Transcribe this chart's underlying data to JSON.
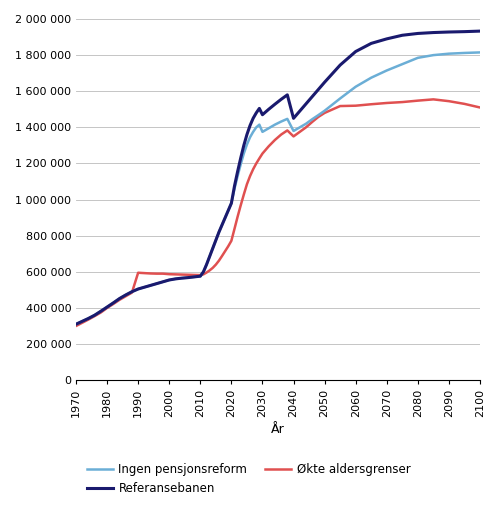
{
  "title": "",
  "xlabel": "År",
  "ylabel": "",
  "xlim": [
    1970,
    2100
  ],
  "ylim": [
    0,
    2000000
  ],
  "yticks": [
    0,
    200000,
    400000,
    600000,
    800000,
    1000000,
    1200000,
    1400000,
    1600000,
    1800000,
    2000000
  ],
  "xticks": [
    1970,
    1980,
    1990,
    2000,
    2010,
    2020,
    2030,
    2040,
    2050,
    2060,
    2070,
    2080,
    2090,
    2100
  ],
  "ytick_labels": [
    "0",
    "200 000",
    "400 000",
    "600 000",
    "800 000",
    "1 000 000",
    "1 200 000",
    "1 400 000",
    "1 600 000",
    "1 800 000",
    "2 000 000"
  ],
  "legend": [
    {
      "label": "Ingen pensjonsreform",
      "color": "#6baed6",
      "linewidth": 1.8
    },
    {
      "label": "Referansebanen",
      "color": "#1a1a6e",
      "linewidth": 2.2
    },
    {
      "label": "Økte aldersgrenser",
      "color": "#e05050",
      "linewidth": 1.8
    }
  ],
  "ingen_pensjonsreform": {
    "years": [
      1970,
      1972,
      1974,
      1976,
      1978,
      1980,
      1982,
      1984,
      1986,
      1988,
      1990,
      1992,
      1994,
      1996,
      1998,
      2000,
      2002,
      2004,
      2006,
      2008,
      2010,
      2011,
      2012,
      2013,
      2014,
      2015,
      2016,
      2017,
      2018,
      2019,
      2020,
      2021,
      2022,
      2023,
      2024,
      2025,
      2026,
      2027,
      2028,
      2029,
      2030,
      2032,
      2034,
      2036,
      2038,
      2040,
      2042,
      2044,
      2046,
      2048,
      2050,
      2055,
      2060,
      2065,
      2070,
      2075,
      2080,
      2085,
      2090,
      2095,
      2100
    ],
    "values": [
      310000,
      326000,
      342000,
      360000,
      382000,
      405000,
      428000,
      452000,
      472000,
      490000,
      505000,
      515000,
      525000,
      535000,
      545000,
      555000,
      561000,
      565000,
      568000,
      572000,
      576000,
      600000,
      640000,
      685000,
      730000,
      775000,
      820000,
      860000,
      900000,
      940000,
      980000,
      1060000,
      1130000,
      1195000,
      1255000,
      1305000,
      1345000,
      1375000,
      1400000,
      1415000,
      1375000,
      1395000,
      1415000,
      1432000,
      1447000,
      1380000,
      1400000,
      1420000,
      1445000,
      1468000,
      1492000,
      1560000,
      1625000,
      1675000,
      1715000,
      1750000,
      1785000,
      1800000,
      1808000,
      1812000,
      1815000
    ]
  },
  "referansebanen": {
    "years": [
      1970,
      1972,
      1974,
      1976,
      1978,
      1980,
      1982,
      1984,
      1986,
      1988,
      1990,
      1992,
      1994,
      1996,
      1998,
      2000,
      2002,
      2004,
      2006,
      2008,
      2010,
      2011,
      2012,
      2013,
      2014,
      2015,
      2016,
      2017,
      2018,
      2019,
      2020,
      2021,
      2022,
      2023,
      2024,
      2025,
      2026,
      2027,
      2028,
      2029,
      2030,
      2032,
      2034,
      2036,
      2038,
      2040,
      2042,
      2044,
      2046,
      2048,
      2050,
      2055,
      2060,
      2065,
      2070,
      2075,
      2080,
      2085,
      2090,
      2095,
      2100
    ],
    "values": [
      310000,
      326000,
      342000,
      360000,
      382000,
      405000,
      428000,
      452000,
      472000,
      490000,
      505000,
      515000,
      525000,
      535000,
      545000,
      555000,
      561000,
      565000,
      568000,
      572000,
      576000,
      600000,
      640000,
      685000,
      730000,
      775000,
      820000,
      860000,
      900000,
      940000,
      980000,
      1075000,
      1155000,
      1230000,
      1300000,
      1360000,
      1410000,
      1450000,
      1480000,
      1505000,
      1470000,
      1500000,
      1528000,
      1555000,
      1580000,
      1450000,
      1490000,
      1530000,
      1570000,
      1610000,
      1650000,
      1745000,
      1820000,
      1865000,
      1890000,
      1910000,
      1920000,
      1925000,
      1928000,
      1930000,
      1933000
    ]
  },
  "okte_aldersgrenser": {
    "years": [
      1970,
      1972,
      1974,
      1976,
      1978,
      1980,
      1982,
      1984,
      1986,
      1988,
      1990,
      1992,
      1994,
      1996,
      1998,
      2000,
      2002,
      2004,
      2006,
      2008,
      2010,
      2011,
      2012,
      2013,
      2014,
      2015,
      2016,
      2017,
      2018,
      2019,
      2020,
      2021,
      2022,
      2023,
      2024,
      2025,
      2026,
      2027,
      2028,
      2029,
      2030,
      2032,
      2034,
      2036,
      2038,
      2040,
      2042,
      2044,
      2046,
      2048,
      2050,
      2055,
      2060,
      2065,
      2070,
      2075,
      2080,
      2085,
      2090,
      2095,
      2100
    ],
    "values": [
      300000,
      318000,
      336000,
      355000,
      375000,
      400000,
      422000,
      445000,
      465000,
      485000,
      595000,
      593000,
      591000,
      590000,
      590000,
      587000,
      586000,
      585000,
      584000,
      583000,
      582000,
      586000,
      596000,
      608000,
      622000,
      640000,
      662000,
      688000,
      715000,
      742000,
      772000,
      838000,
      905000,
      968000,
      1028000,
      1085000,
      1130000,
      1168000,
      1200000,
      1228000,
      1255000,
      1295000,
      1330000,
      1360000,
      1383000,
      1350000,
      1375000,
      1400000,
      1430000,
      1458000,
      1480000,
      1518000,
      1520000,
      1528000,
      1535000,
      1540000,
      1548000,
      1555000,
      1545000,
      1530000,
      1510000
    ]
  },
  "background_color": "#ffffff",
  "grid_color": "#bbbbbb",
  "figsize": [
    5.0,
    5.23
  ],
  "dpi": 100
}
